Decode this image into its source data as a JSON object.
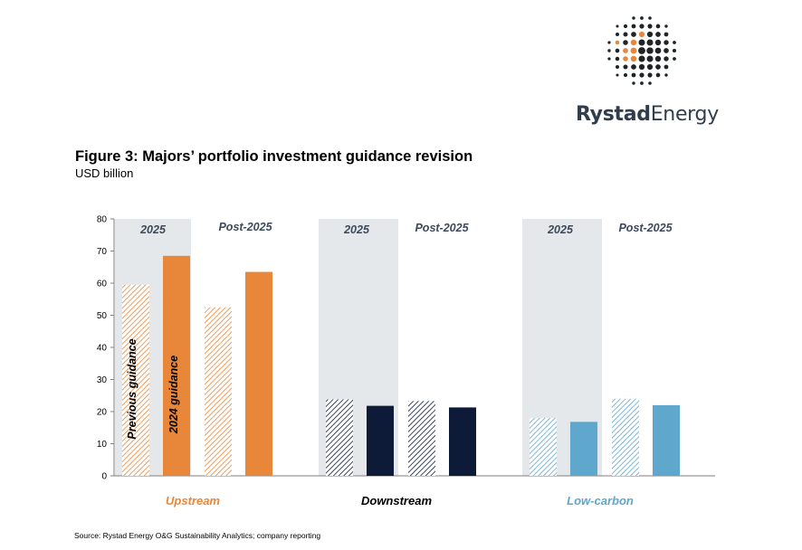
{
  "brand": {
    "name_bold": "Rystad",
    "name_light": "Energy"
  },
  "title": "Figure 3: Majors’ portfolio investment guidance revision",
  "subtitle": "USD billion",
  "source": "Source: Rystad Energy O&G Sustainability Analytics; company reporting",
  "colors": {
    "upstream": "#e8873a",
    "downstream": "#0d1b38",
    "lowcarbon": "#5fa7cc",
    "shade": "#e5e8ea",
    "header_text": "#3b4a5c"
  },
  "chart_data": {
    "type": "bar",
    "ylim": [
      0,
      80
    ],
    "yticks": [
      0,
      10,
      20,
      30,
      40,
      50,
      60,
      70,
      80
    ],
    "period_labels": [
      "2025",
      "Post-2025"
    ],
    "bar_labels": [
      "Previous guidance",
      "2024 guidance"
    ],
    "series": [
      "Previous guidance",
      "2024 guidance"
    ],
    "groups": [
      {
        "name": "Upstream",
        "color_key": "upstream",
        "periods": [
          {
            "label": "2025",
            "values": [
              59.5,
              68.5
            ]
          },
          {
            "label": "Post-2025",
            "values": [
              52.5,
              63.5
            ]
          }
        ]
      },
      {
        "name": "Downstream",
        "color_key": "downstream",
        "periods": [
          {
            "label": "2025",
            "values": [
              23.8,
              21.8
            ]
          },
          {
            "label": "Post-2025",
            "values": [
              23.3,
              21.3
            ]
          }
        ]
      },
      {
        "name": "Low-carbon",
        "color_key": "lowcarbon",
        "periods": [
          {
            "label": "2025",
            "values": [
              18.0,
              16.8
            ]
          },
          {
            "label": "Post-2025",
            "values": [
              24.0,
              22.0
            ]
          }
        ]
      }
    ]
  }
}
